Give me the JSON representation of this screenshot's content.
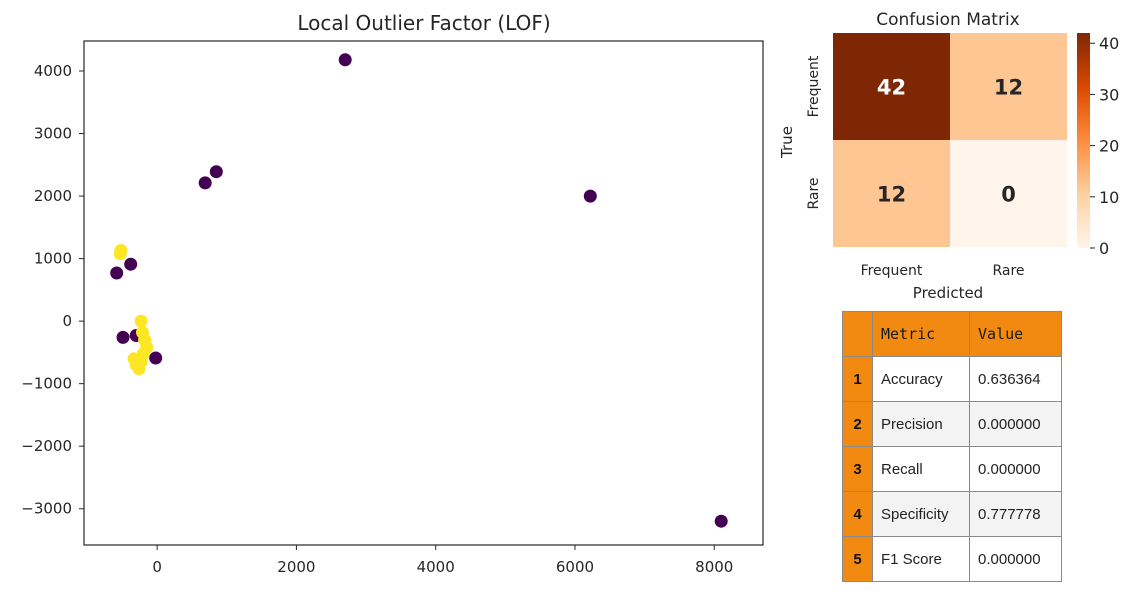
{
  "chart_data": [
    {
      "type": "scatter",
      "title": "Local Outlier Factor (LOF)",
      "xlabel": "",
      "ylabel": "",
      "xlim": [
        -1050,
        8700
      ],
      "ylim": [
        -3580,
        4480
      ],
      "x_ticks": [
        0,
        2000,
        4000,
        6000,
        8000
      ],
      "x_tick_labels": [
        "0",
        "2000",
        "4000",
        "6000",
        "8000"
      ],
      "y_ticks": [
        -3000,
        -2000,
        -1000,
        0,
        1000,
        2000,
        3000,
        4000
      ],
      "y_tick_labels": [
        "−3000",
        "−2000",
        "−1000",
        "0",
        "1000",
        "2000",
        "3000",
        "4000"
      ],
      "grid": false,
      "series": [
        {
          "color": "#440154",
          "points": [
            {
              "x": 2700,
              "y": 4180
            },
            {
              "x": 850,
              "y": 2390
            },
            {
              "x": 690,
              "y": 2210
            },
            {
              "x": 6220,
              "y": 2000
            },
            {
              "x": 8100,
              "y": -3200
            },
            {
              "x": -580,
              "y": 770
            },
            {
              "x": -380,
              "y": 910
            },
            {
              "x": -490,
              "y": -260
            },
            {
              "x": -300,
              "y": -230
            },
            {
              "x": -20,
              "y": -590
            }
          ]
        },
        {
          "color": "#fde725",
          "points": [
            {
              "x": -520,
              "y": 1130
            },
            {
              "x": -530,
              "y": 1080
            },
            {
              "x": -230,
              "y": 0
            },
            {
              "x": -210,
              "y": -180
            },
            {
              "x": -180,
              "y": -300
            },
            {
              "x": -150,
              "y": -420
            },
            {
              "x": -330,
              "y": -600
            },
            {
              "x": -300,
              "y": -700
            },
            {
              "x": -260,
              "y": -760
            },
            {
              "x": -230,
              "y": -650
            },
            {
              "x": -200,
              "y": -520
            }
          ]
        }
      ]
    },
    {
      "type": "heatmap",
      "title": "Confusion Matrix",
      "xlabel": "Predicted",
      "ylabel": "True",
      "x_labels": [
        "Frequent",
        "Rare"
      ],
      "y_labels": [
        "Frequent",
        "Rare"
      ],
      "values": [
        [
          42,
          12
        ],
        [
          12,
          0
        ]
      ],
      "colormap": "Oranges",
      "colorbar_range": [
        0,
        42
      ],
      "colorbar_ticks": [
        0,
        10,
        20,
        30,
        40
      ],
      "colorbar_tick_labels": [
        "0",
        "10",
        "20",
        "30",
        "40"
      ]
    }
  ],
  "metrics_table": {
    "headers": [
      "",
      "Metric",
      "Value"
    ],
    "rows": [
      {
        "index": "1",
        "metric": "Accuracy",
        "value": "0.636364"
      },
      {
        "index": "2",
        "metric": "Precision",
        "value": "0.000000"
      },
      {
        "index": "3",
        "metric": "Recall",
        "value": "0.000000"
      },
      {
        "index": "4",
        "metric": "Specificity",
        "value": "0.777778"
      },
      {
        "index": "5",
        "metric": "F1 Score",
        "value": "0.000000"
      }
    ]
  },
  "colors": {
    "table_header": "#f28a12",
    "heatmap_high": "#7f2704",
    "heatmap_low": "#fff5eb"
  }
}
